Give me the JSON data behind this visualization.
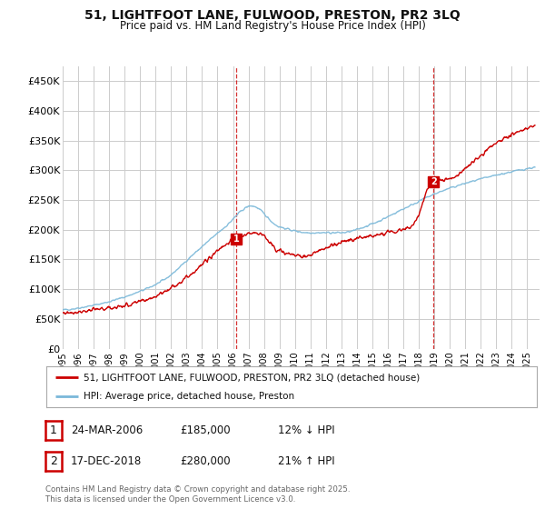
{
  "title_line1": "51, LIGHTFOOT LANE, FULWOOD, PRESTON, PR2 3LQ",
  "title_line2": "Price paid vs. HM Land Registry's House Price Index (HPI)",
  "ylim": [
    0,
    475000
  ],
  "yticks": [
    0,
    50000,
    100000,
    150000,
    200000,
    250000,
    300000,
    350000,
    400000,
    450000
  ],
  "ytick_labels": [
    "£0",
    "£50K",
    "£100K",
    "£150K",
    "£200K",
    "£250K",
    "£300K",
    "£350K",
    "£400K",
    "£450K"
  ],
  "xlim_start": 1995.0,
  "xlim_end": 2025.8,
  "hpi_color": "#7ab8d9",
  "price_color": "#cc0000",
  "purchase1_date": 2006.23,
  "purchase1_price": 185000,
  "purchase1_label": "1",
  "purchase2_date": 2018.96,
  "purchase2_price": 280000,
  "purchase2_label": "2",
  "legend_entry1": "51, LIGHTFOOT LANE, FULWOOD, PRESTON, PR2 3LQ (detached house)",
  "legend_entry2": "HPI: Average price, detached house, Preston",
  "table_row1_num": "1",
  "table_row1_date": "24-MAR-2006",
  "table_row1_price": "£185,000",
  "table_row1_hpi": "12% ↓ HPI",
  "table_row2_num": "2",
  "table_row2_date": "17-DEC-2018",
  "table_row2_price": "£280,000",
  "table_row2_hpi": "21% ↑ HPI",
  "footer": "Contains HM Land Registry data © Crown copyright and database right 2025.\nThis data is licensed under the Open Government Licence v3.0.",
  "background_color": "#ffffff",
  "grid_color": "#cccccc"
}
